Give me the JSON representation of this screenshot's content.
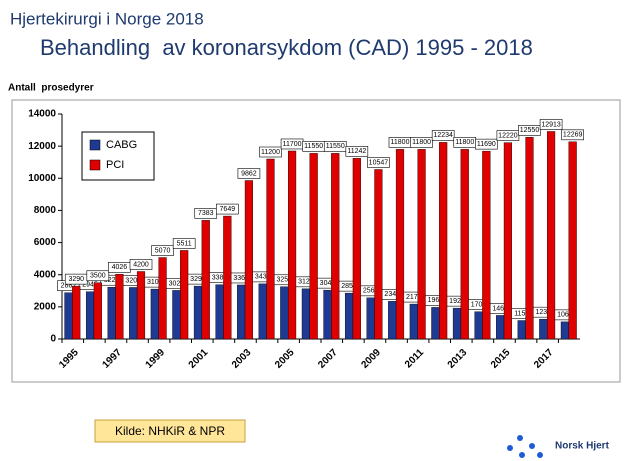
{
  "chart_data": {
    "type": "bar",
    "title": "Hjertekirurgi i Norge 2018",
    "subtitle": "Behandling  av koronarsykdom (CAD) 1995 - 2018",
    "y_label": "Antall  prosedyrer",
    "source": "Kilde: NHKiR & NPR",
    "logo_text": "Norsk Hjert",
    "categories": [
      "1995",
      null,
      "1997",
      null,
      "1999",
      null,
      "2001",
      null,
      "2003",
      null,
      "2005",
      null,
      "2007",
      null,
      "2009",
      null,
      "2011",
      null,
      "2013",
      null,
      "2015",
      null,
      "2017",
      null
    ],
    "series": [
      {
        "name": "CABG",
        "color": "#1f3a93",
        "values": [
          2882,
          2945,
          3221,
          3207,
          3104,
          3023,
          3290,
          3380,
          3362,
          3430,
          3250,
          3122,
          3040,
          2855,
          2561,
          2345,
          2173,
          1966,
          1920,
          1700,
          1467,
          1150,
          1233,
          1066
        ]
      },
      {
        "name": "PCI",
        "color": "#e00000",
        "values": [
          3290,
          3500,
          4026,
          4200,
          5070,
          5511,
          7383,
          7649,
          9862,
          11200,
          11700,
          11550,
          11550,
          11242,
          10547,
          11800,
          11800,
          12234,
          11800,
          11690,
          12220,
          12550,
          12913,
          12269
        ]
      }
    ],
    "ylim": [
      0,
      14000
    ],
    "yticks": [
      0,
      2000,
      4000,
      6000,
      8000,
      10000,
      12000,
      14000
    ],
    "legend": "upper left",
    "grid": false
  }
}
